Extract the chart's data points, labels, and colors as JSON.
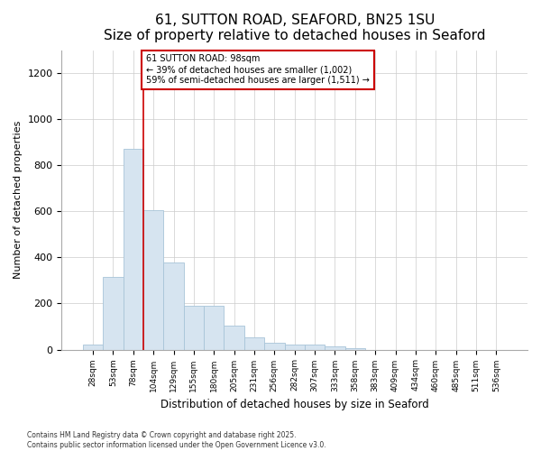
{
  "title": "61, SUTTON ROAD, SEAFORD, BN25 1SU",
  "subtitle": "Size of property relative to detached houses in Seaford",
  "xlabel": "Distribution of detached houses by size in Seaford",
  "ylabel": "Number of detached properties",
  "categories": [
    "28sqm",
    "53sqm",
    "78sqm",
    "104sqm",
    "129sqm",
    "155sqm",
    "180sqm",
    "205sqm",
    "231sqm",
    "256sqm",
    "282sqm",
    "307sqm",
    "333sqm",
    "358sqm",
    "383sqm",
    "409sqm",
    "434sqm",
    "460sqm",
    "485sqm",
    "511sqm",
    "536sqm"
  ],
  "values": [
    20,
    315,
    870,
    605,
    380,
    190,
    190,
    105,
    55,
    30,
    20,
    20,
    15,
    5,
    0,
    0,
    0,
    0,
    0,
    0,
    0
  ],
  "bar_color": "#d6e4f0",
  "bar_edge_color": "#a8c4d8",
  "red_line_x": 2.5,
  "annotation_text": "61 SUTTON ROAD: 98sqm\n← 39% of detached houses are smaller (1,002)\n59% of semi-detached houses are larger (1,511) →",
  "annotation_box_color": "#ffffff",
  "annotation_box_edge": "#cc0000",
  "ylim": [
    0,
    1300
  ],
  "yticks": [
    0,
    200,
    400,
    600,
    800,
    1000,
    1200
  ],
  "grid_color": "#cccccc",
  "footer_line1": "Contains HM Land Registry data © Crown copyright and database right 2025.",
  "footer_line2": "Contains public sector information licensed under the Open Government Licence v3.0.",
  "bg_color": "#ffffff",
  "title_fontsize": 11,
  "subtitle_fontsize": 9
}
